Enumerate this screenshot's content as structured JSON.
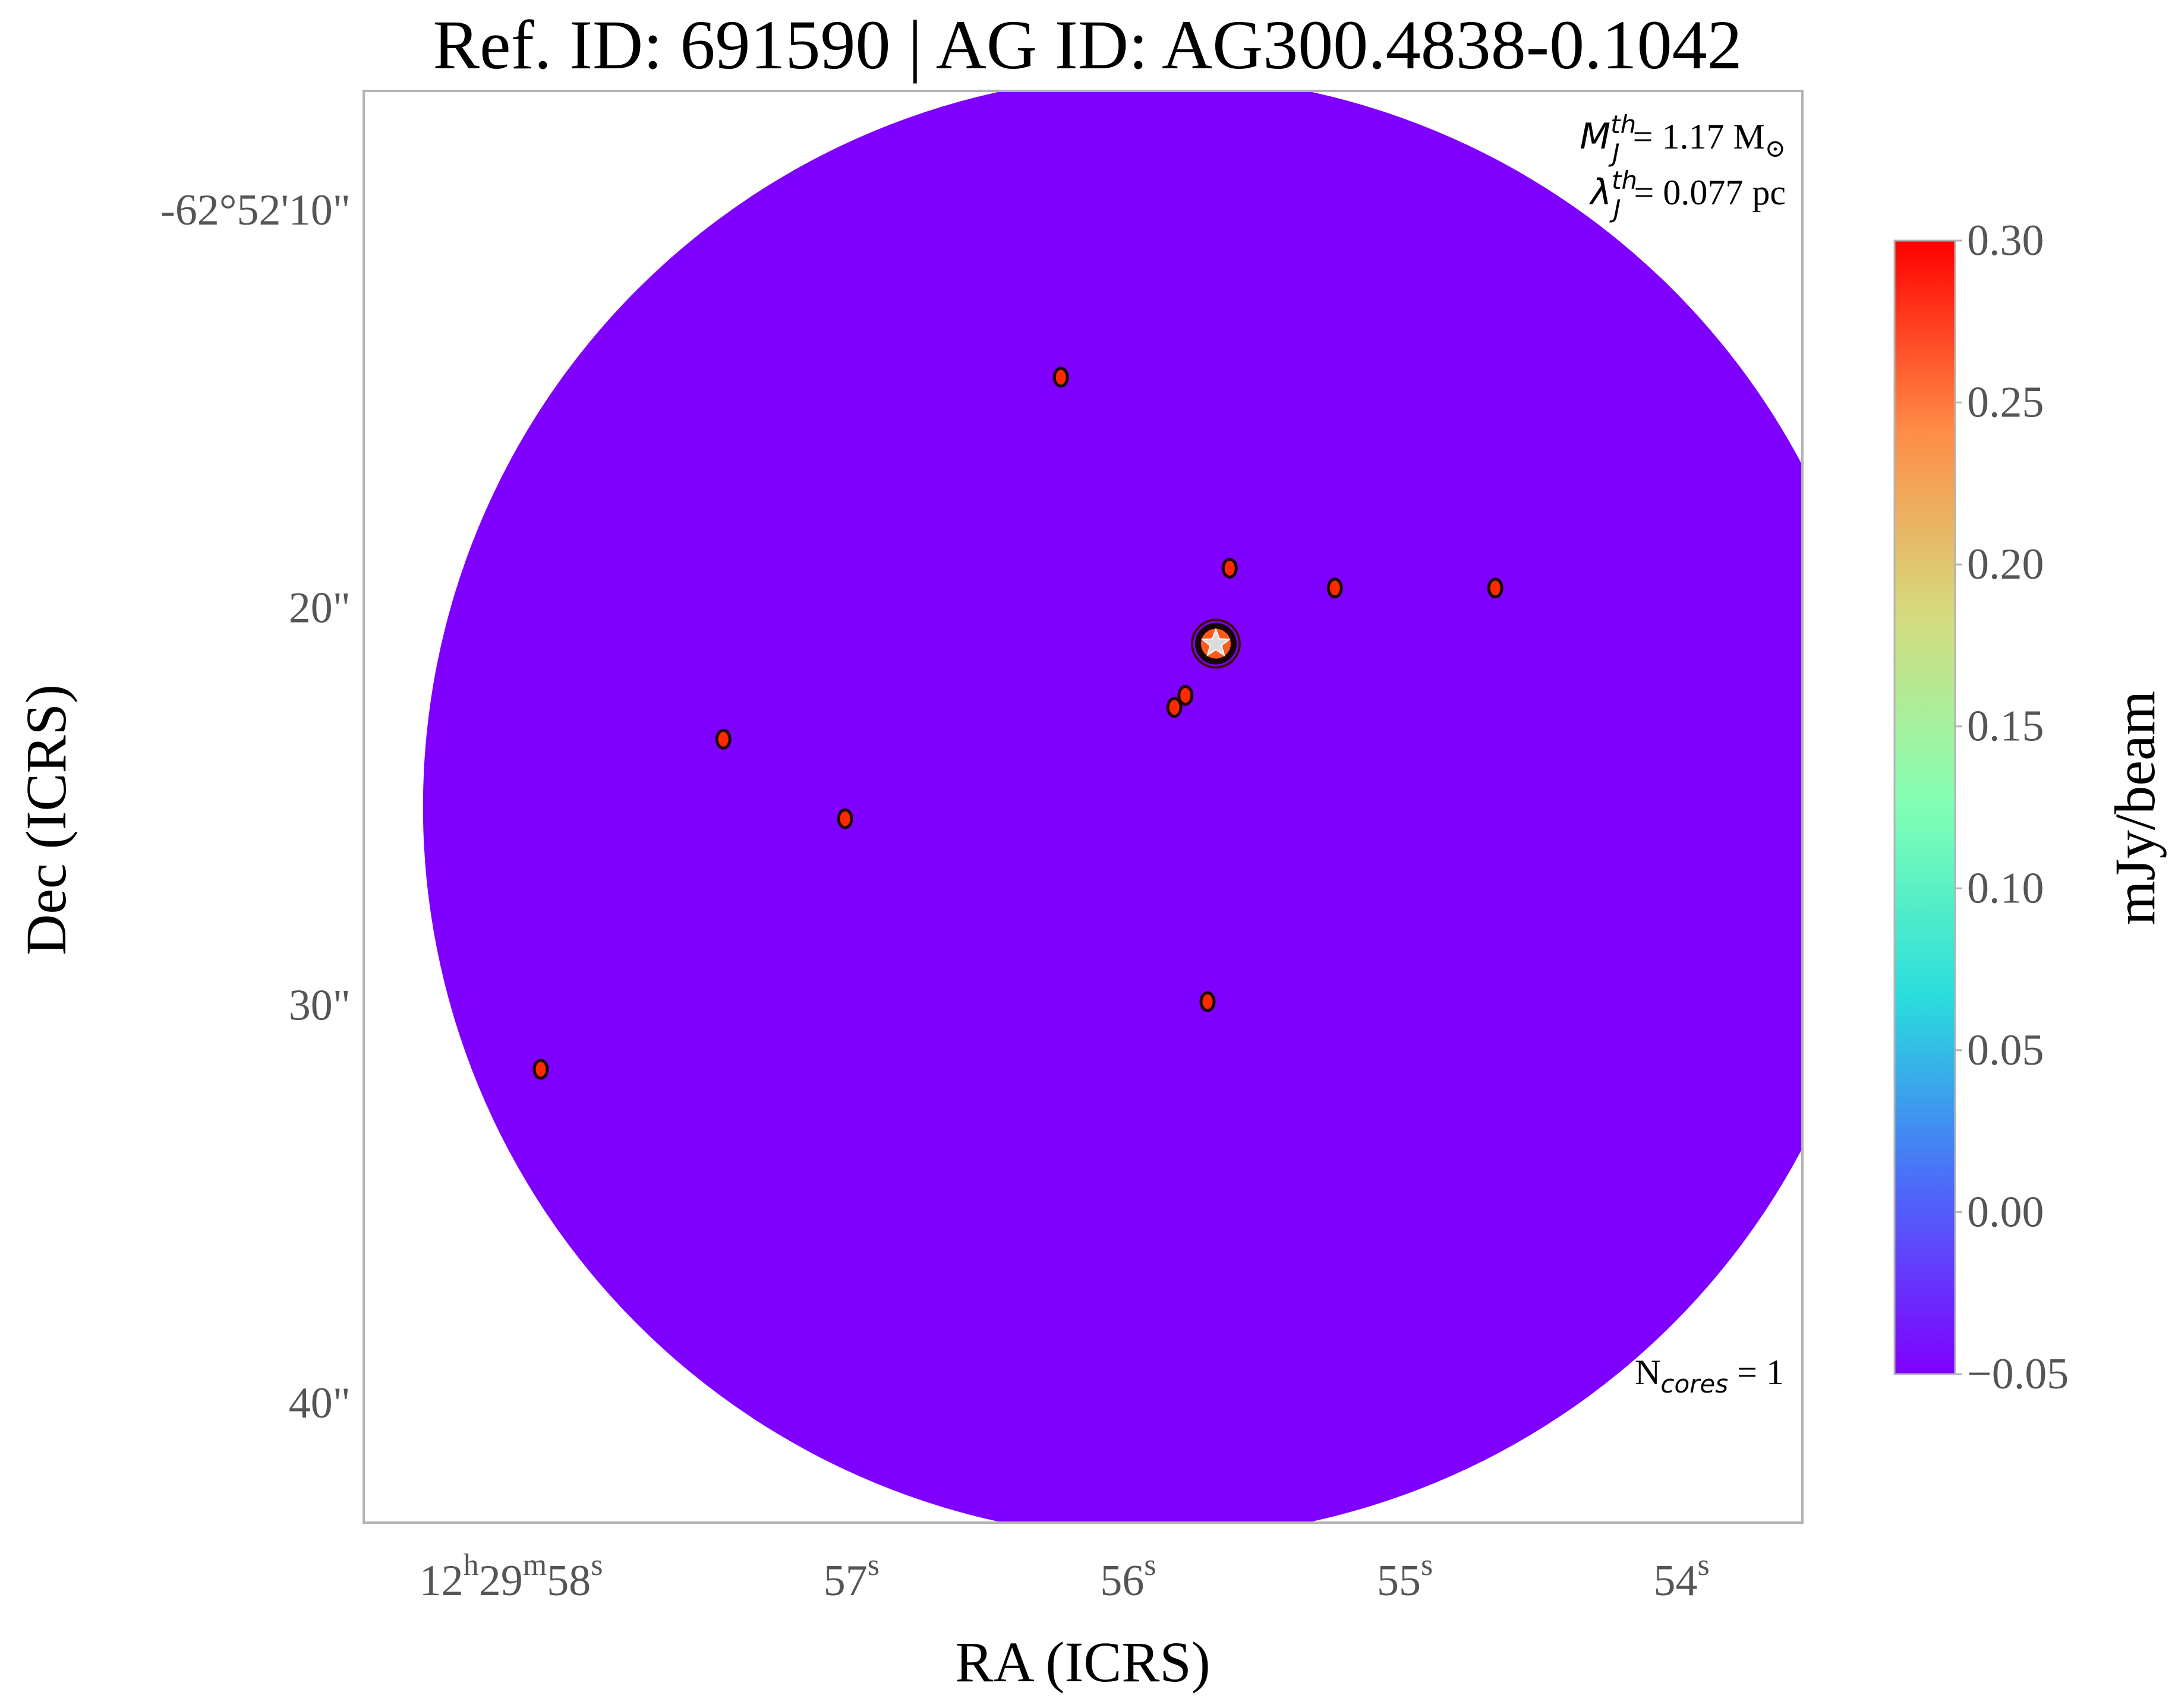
{
  "chart_data": {
    "type": "heatmap",
    "title": "Ref. ID: 691590 | AG ID: AG300.4838-0.1042",
    "xlabel": "RA (ICRS)",
    "ylabel": "Dec (ICRS)",
    "x_ticks": [
      {
        "h": "12",
        "m": "29",
        "s": "58",
        "label": "12h29m58s",
        "value_s": 58
      },
      {
        "s": "57",
        "label": "57s",
        "value_s": 57
      },
      {
        "s": "56",
        "label": "56s",
        "value_s": 56
      },
      {
        "s": "55",
        "label": "55s",
        "value_s": 55
      },
      {
        "s": "54",
        "label": "54s",
        "value_s": 54
      }
    ],
    "y_ticks": [
      {
        "label": "-62°52'10\"",
        "value_arcsec": 10
      },
      {
        "label": "20\"",
        "value_arcsec": 20
      },
      {
        "label": "30\"",
        "value_arcsec": 30
      },
      {
        "label": "40\"",
        "value_arcsec": 40
      }
    ],
    "xlim_s": [
      58.8,
      53.6
    ],
    "ylim_arcsec": [
      7.0,
      43.0
    ],
    "colorbar": {
      "label": "mJy/beam",
      "ticks": [
        "0.30",
        "0.25",
        "0.20",
        "0.15",
        "0.10",
        "0.05",
        "0.00",
        "−0.05"
      ],
      "range": [
        -0.05,
        0.3
      ],
      "colormap": "rainbow",
      "colors": [
        "#8000ff",
        "#4c6bf9",
        "#2adddd",
        "#80ffb4",
        "#d4dc7f",
        "#ff8c47",
        "#ff0000"
      ]
    },
    "field": {
      "shape": "circle",
      "center_s": 55.94,
      "center_arcsec": 25.0,
      "radius_arcsec": 18.4
    },
    "annotations": {
      "mass": {
        "symbol": "M",
        "sup": "th",
        "sub": "J",
        "text": "= 1.17 M",
        "unit": "⊙"
      },
      "length": {
        "symbol": "λ",
        "sup": "th",
        "sub": "J",
        "text": "= 0.077 pc"
      },
      "cores": {
        "prefix": "N",
        "sub": "cores",
        "text": " = 1"
      }
    },
    "cores": [
      {
        "ra_s": 55.72,
        "dec_arcsec": 20.9,
        "marker": "star"
      }
    ],
    "contour_blobs": [
      {
        "ra_s": 56.28,
        "dec_arcsec": 14.2
      },
      {
        "ra_s": 55.67,
        "dec_arcsec": 19.0
      },
      {
        "ra_s": 55.29,
        "dec_arcsec": 19.5
      },
      {
        "ra_s": 54.71,
        "dec_arcsec": 19.5
      },
      {
        "ra_s": 55.83,
        "dec_arcsec": 22.2
      },
      {
        "ra_s": 55.87,
        "dec_arcsec": 22.5
      },
      {
        "ra_s": 57.5,
        "dec_arcsec": 23.3
      },
      {
        "ra_s": 57.06,
        "dec_arcsec": 25.3
      },
      {
        "ra_s": 55.75,
        "dec_arcsec": 29.9
      },
      {
        "ra_s": 58.16,
        "dec_arcsec": 31.6
      }
    ]
  }
}
